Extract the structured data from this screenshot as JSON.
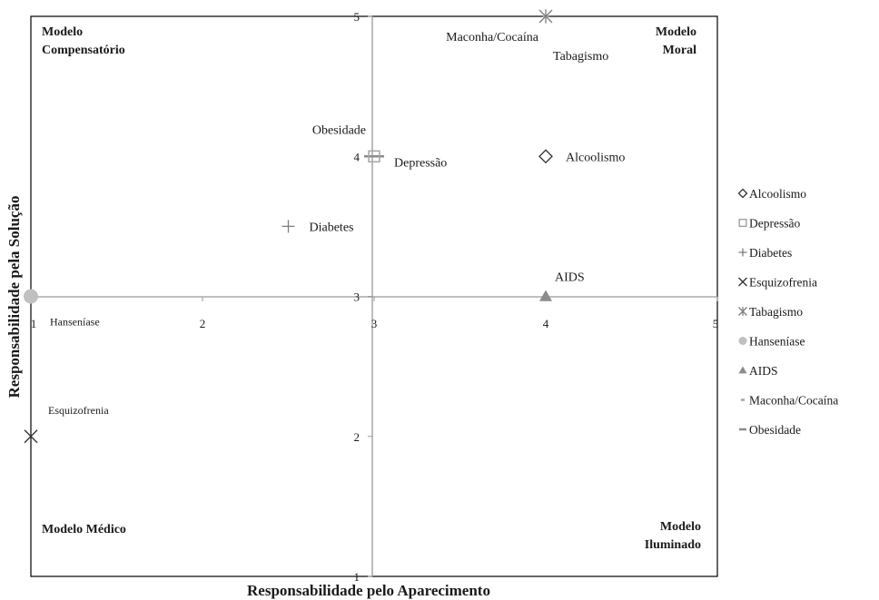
{
  "chart_data": {
    "type": "scatter",
    "xlabel": "Responsabilidade pelo Aparecimento",
    "ylabel": "Responsabilidade pela Solução",
    "xlim": [
      1,
      5
    ],
    "ylim": [
      1,
      5
    ],
    "x_ticks": [
      "1",
      "2",
      "3",
      "4",
      "5"
    ],
    "y_ticks": [
      "1",
      "2",
      "3",
      "4",
      "5"
    ],
    "grid": false,
    "legend_position": "right",
    "quadrant_labels": {
      "top_left": [
        "Modelo",
        "Compensatório"
      ],
      "top_right": [
        "Modelo",
        "Moral"
      ],
      "bottom_left": [
        "Modelo Médico"
      ],
      "bottom_right": [
        "Modelo",
        "Iluminado"
      ]
    },
    "series": [
      {
        "name": "Alcoolismo",
        "marker": "diamond-open",
        "color": "#333333",
        "x": 4,
        "y": 4,
        "label": "Alcoolismo"
      },
      {
        "name": "Depressão",
        "marker": "square-open",
        "color": "#a6a6a6",
        "x": 3,
        "y": 4,
        "label": "Depressão"
      },
      {
        "name": "Diabetes",
        "marker": "plus",
        "color": "#7f7f7f",
        "x": 2.5,
        "y": 3.5,
        "label": "Diabetes"
      },
      {
        "name": "Esquizofrenia",
        "marker": "x",
        "color": "#333333",
        "x": 1,
        "y": 2,
        "label": "Esquizofrenia"
      },
      {
        "name": "Tabagismo",
        "marker": "asterisk",
        "color": "#7f7f7f",
        "x": 4,
        "y": 5,
        "label": "Tabagismo"
      },
      {
        "name": "Hanseníase",
        "marker": "circle-filled",
        "color": "#c0c0c0",
        "x": 1,
        "y": 3,
        "label": "Hanseníase"
      },
      {
        "name": "AIDS",
        "marker": "triangle-filled",
        "color": "#8c8c8c",
        "x": 4,
        "y": 3,
        "label": "AIDS"
      },
      {
        "name": "Maconha/Cocaína",
        "marker": "dash-short",
        "color": "#a6a6a6",
        "x": 4,
        "y": 5,
        "label": "Maconha/Cocaína"
      },
      {
        "name": "Obesidade",
        "marker": "dash",
        "color": "#8c8c8c",
        "x": 3,
        "y": 4,
        "label": "Obesidade"
      }
    ]
  }
}
